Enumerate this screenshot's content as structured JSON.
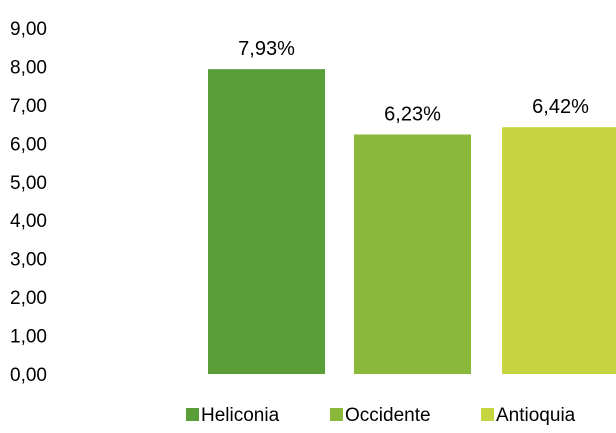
{
  "chart_data": {
    "type": "bar",
    "title": "",
    "xlabel": "",
    "ylabel": "",
    "ylim": [
      0,
      9
    ],
    "ytick_values": [
      0,
      1,
      2,
      3,
      4,
      5,
      6,
      7,
      8,
      9
    ],
    "ytick_labels": [
      "0,00",
      "1,00",
      "2,00",
      "3,00",
      "4,00",
      "5,00",
      "6,00",
      "7,00",
      "8,00",
      "9,00"
    ],
    "grid": false,
    "legend_position": "bottom",
    "categories": [
      "Heliconia",
      "Occidente",
      "Antioquia"
    ],
    "values": [
      7.93,
      6.23,
      6.42
    ],
    "data_labels": [
      "7,93%",
      "6,23%",
      "6,42%"
    ],
    "colors": [
      "#5a9e3a",
      "#8ab83a",
      "#c5d43f"
    ],
    "legend": [
      "Heliconia",
      "Occidente",
      "Antioquia"
    ]
  }
}
